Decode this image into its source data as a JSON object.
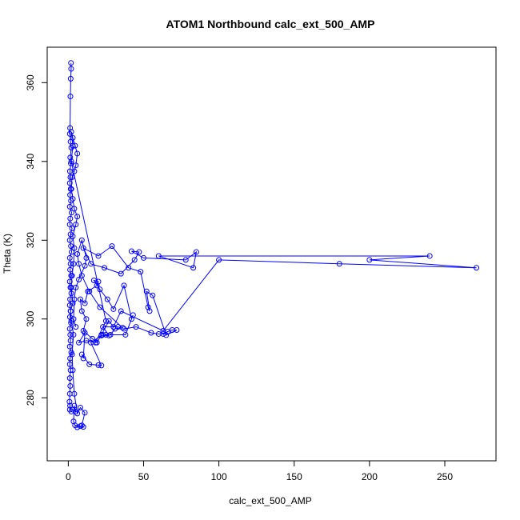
{
  "chart_data": {
    "type": "scatter",
    "title": "ATOM1 Northbound calc_ext_500_AMP",
    "xlabel": "calc_ext_500_AMP",
    "ylabel": "Theta (K)",
    "xlim": [
      -14,
      284
    ],
    "ylim": [
      264,
      369
    ],
    "xticks": [
      0,
      50,
      100,
      150,
      200,
      250
    ],
    "yticks": [
      280,
      300,
      320,
      340,
      360
    ],
    "grid": false,
    "series": [
      {
        "marker": "open-circle",
        "connected": true,
        "color": "#0000ff",
        "points": [
          [
            1.8,
            365
          ],
          [
            1.9,
            363.5
          ],
          [
            1.6,
            361
          ],
          [
            1.4,
            356.5
          ],
          [
            1.2,
            348.5
          ],
          [
            1.0,
            347
          ],
          [
            1.5,
            345
          ],
          [
            2.0,
            343.5
          ],
          [
            1.3,
            341
          ],
          [
            1.7,
            339.5
          ],
          [
            1.1,
            337.5
          ],
          [
            1.4,
            336
          ],
          [
            1.0,
            334.5
          ],
          [
            1.6,
            333
          ],
          [
            1.2,
            331.5
          ],
          [
            1.8,
            330
          ],
          [
            1.0,
            328.5
          ],
          [
            2.2,
            327
          ],
          [
            1.3,
            325.5
          ],
          [
            1.0,
            324
          ],
          [
            2.5,
            323
          ],
          [
            1.5,
            321.5
          ],
          [
            1.0,
            320
          ],
          [
            1.8,
            318.5
          ],
          [
            2.2,
            317
          ],
          [
            1.0,
            315.5
          ],
          [
            1.5,
            314
          ],
          [
            1.2,
            312.5
          ],
          [
            1.9,
            311
          ],
          [
            1.0,
            309.5
          ],
          [
            1.4,
            308
          ],
          [
            2.0,
            306.5
          ],
          [
            1.2,
            305
          ],
          [
            1.0,
            303.5
          ],
          [
            1.6,
            302
          ],
          [
            1.1,
            300.5
          ],
          [
            1.8,
            299
          ],
          [
            1.0,
            297.5
          ],
          [
            1.3,
            296
          ],
          [
            1.5,
            294.5
          ],
          [
            1.0,
            293
          ],
          [
            2.0,
            291.5
          ],
          [
            1.2,
            290
          ],
          [
            1.0,
            288.5
          ],
          [
            1.5,
            287
          ],
          [
            1.0,
            285
          ],
          [
            1.3,
            283
          ],
          [
            1.0,
            281
          ],
          [
            0.8,
            279
          ],
          [
            1.2,
            278
          ],
          [
            1.0,
            277
          ],
          [
            2.0,
            276.5
          ],
          [
            3.0,
            277
          ],
          [
            5.0,
            276.5
          ],
          [
            4.0,
            278
          ],
          [
            3.5,
            274
          ],
          [
            4.5,
            273
          ],
          [
            6.0,
            272.5
          ],
          [
            8.0,
            272.8
          ],
          [
            10.0,
            272.6
          ],
          [
            9.0,
            273
          ],
          [
            11.0,
            276.2
          ],
          [
            8.0,
            277.5
          ],
          [
            6.0,
            276
          ],
          [
            4.0,
            281
          ],
          [
            3.0,
            287
          ],
          [
            2.5,
            291
          ],
          [
            3.5,
            296
          ],
          [
            2.0,
            299.5
          ],
          [
            1.5,
            302
          ],
          [
            3.0,
            304
          ],
          [
            2.0,
            308
          ],
          [
            2.5,
            311
          ],
          [
            3.5,
            314
          ],
          [
            4.0,
            318
          ],
          [
            3.0,
            321
          ],
          [
            5.0,
            324
          ],
          [
            6.0,
            326
          ],
          [
            4.0,
            328
          ],
          [
            3.0,
            330.5
          ],
          [
            2.0,
            333
          ],
          [
            2.5,
            336
          ],
          [
            4.0,
            337.5
          ],
          [
            5.0,
            339
          ],
          [
            6.0,
            342
          ],
          [
            4.5,
            344
          ],
          [
            3.0,
            346
          ],
          [
            2.0,
            347.5
          ],
          [
            3.0,
            344
          ],
          [
            2.0,
            340
          ],
          [
            25.0,
            299.5
          ],
          [
            18.0,
            294
          ],
          [
            12.0,
            294.5
          ],
          [
            7.0,
            294
          ],
          [
            11.0,
            296.5
          ],
          [
            10.0,
            290
          ],
          [
            9.0,
            291
          ],
          [
            14.0,
            288.5
          ],
          [
            20.0,
            288.3
          ],
          [
            22.0,
            288.2
          ],
          [
            15.0,
            294
          ],
          [
            22.0,
            295.8
          ],
          [
            27.0,
            295.8
          ],
          [
            23.0,
            298
          ],
          [
            33.0,
            298
          ],
          [
            37.0,
            297.5
          ],
          [
            45.0,
            298
          ],
          [
            55.0,
            296.5
          ],
          [
            60.0,
            296.2
          ],
          [
            63.0,
            296.2
          ],
          [
            66.0,
            296.8
          ],
          [
            69.0,
            297.2
          ],
          [
            72.0,
            297.2
          ],
          [
            65.0,
            295.9
          ],
          [
            56.0,
            306
          ],
          [
            52.0,
            307
          ],
          [
            54.0,
            302
          ],
          [
            53.0,
            303
          ],
          [
            48.0,
            312
          ],
          [
            40.0,
            313
          ],
          [
            29.0,
            318.5
          ],
          [
            20.0,
            316
          ],
          [
            10.0,
            318
          ],
          [
            15.0,
            314
          ],
          [
            24.0,
            313
          ],
          [
            35.0,
            311.5
          ],
          [
            44.0,
            315
          ],
          [
            47.0,
            317
          ],
          [
            42.0,
            317.2
          ],
          [
            50.0,
            315.5
          ],
          [
            78.0,
            315
          ],
          [
            85.0,
            317
          ],
          [
            83.0,
            313
          ],
          [
            60.0,
            316
          ],
          [
            240.0,
            316
          ],
          [
            200.0,
            315
          ],
          [
            271.0,
            313
          ],
          [
            180.0,
            314
          ],
          [
            100.0,
            315
          ],
          [
            63.0,
            297
          ],
          [
            35.0,
            302
          ],
          [
            30.0,
            298
          ],
          [
            27.0,
            299.5
          ],
          [
            22.0,
            296
          ],
          [
            19.0,
            294
          ],
          [
            16.0,
            295
          ],
          [
            10.0,
            297
          ],
          [
            12.0,
            300
          ],
          [
            9.0,
            302
          ],
          [
            8.0,
            305
          ],
          [
            11.0,
            304
          ],
          [
            13.0,
            307
          ],
          [
            19.0,
            308.5
          ],
          [
            20.0,
            309.5
          ],
          [
            17.0,
            309.8
          ],
          [
            21.0,
            307.5
          ],
          [
            26.0,
            305
          ],
          [
            30.0,
            302.5
          ],
          [
            37.0,
            308.5
          ],
          [
            42.0,
            300
          ],
          [
            43.0,
            301
          ],
          [
            38.0,
            296
          ],
          [
            25.0,
            296
          ],
          [
            23.0,
            296
          ],
          [
            28.0,
            296
          ],
          [
            31.0,
            297.5
          ],
          [
            36.0,
            297.8
          ],
          [
            21.0,
            303
          ],
          [
            14.0,
            307
          ],
          [
            9.0,
            311
          ],
          [
            7.0,
            314
          ],
          [
            6.0,
            316.5
          ],
          [
            9.0,
            320
          ],
          [
            12.0,
            315.5
          ],
          [
            11.0,
            313.5
          ],
          [
            7.0,
            310
          ],
          [
            5.0,
            308
          ],
          [
            4.0,
            305
          ],
          [
            3.5,
            300
          ],
          [
            5.0,
            298
          ]
        ]
      }
    ]
  }
}
